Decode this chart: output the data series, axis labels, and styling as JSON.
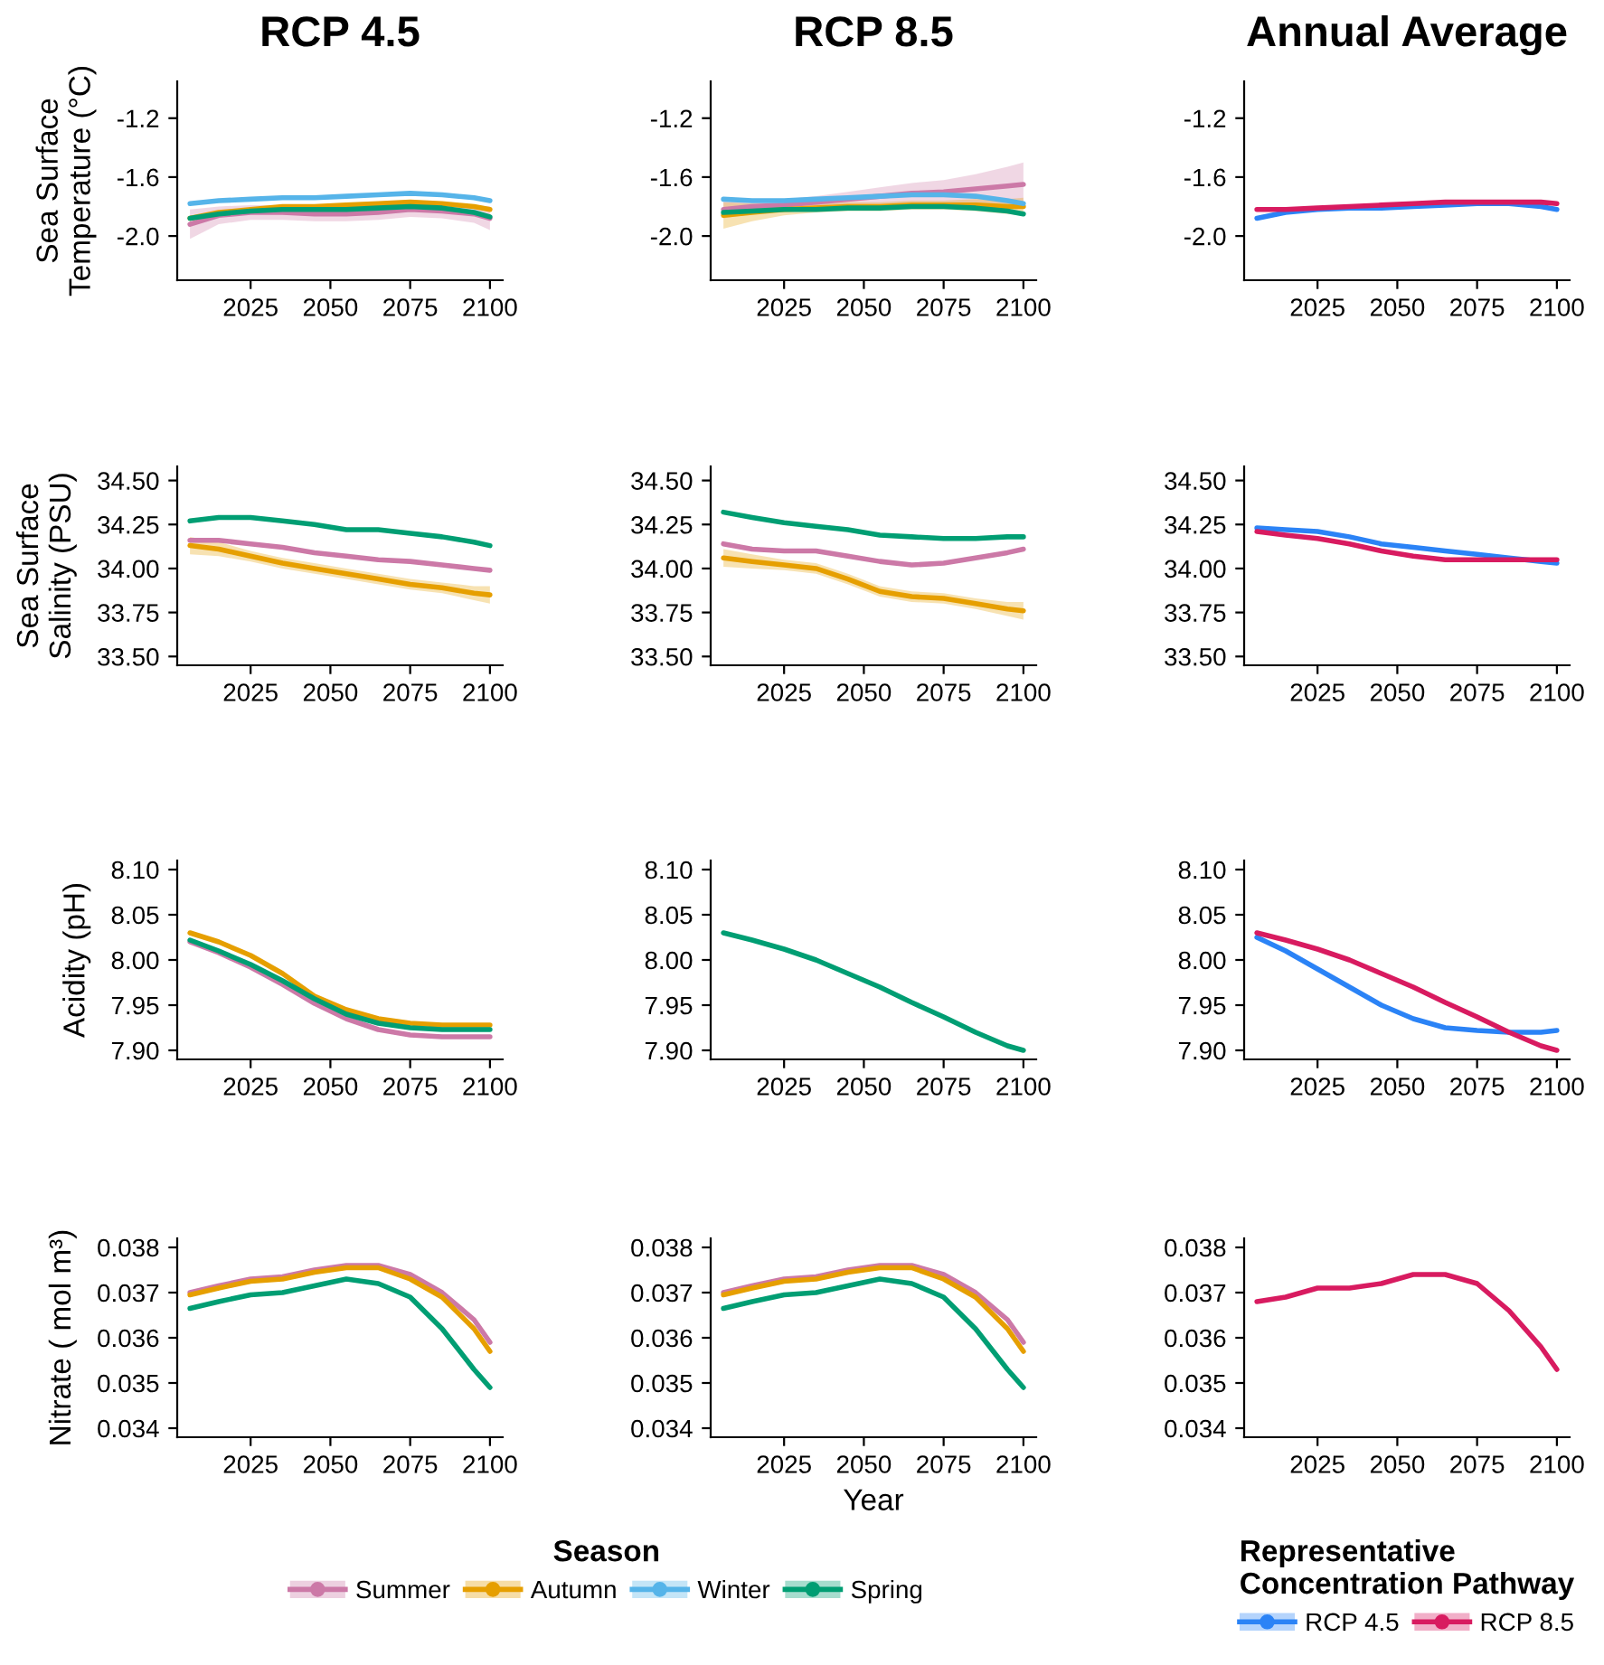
{
  "chart_data": [
    {
      "type": "line",
      "title": "RCP 4.5",
      "ylabel": "Sea Surface\nTemperature (°C)",
      "x": [
        2006,
        2015,
        2025,
        2035,
        2045,
        2055,
        2065,
        2075,
        2085,
        2095,
        2100
      ],
      "xlim": [
        2002,
        2104
      ],
      "xticks": [
        2025,
        2050,
        2075,
        2100
      ],
      "ylim": [
        -2.3,
        -0.95
      ],
      "yticks": [
        {
          "value": -2.0,
          "label": "-2.0"
        },
        -1.6,
        -1.2
      ],
      "series": [
        {
          "color": "#cc79a7",
          "values": [
            -1.92,
            -1.86,
            -1.84,
            -1.84,
            -1.85,
            -1.85,
            -1.84,
            -1.82,
            -1.83,
            -1.85,
            -1.88
          ],
          "lower": [
            -2.02,
            -1.92,
            -1.89,
            -1.89,
            -1.9,
            -1.9,
            -1.89,
            -1.87,
            -1.88,
            -1.91,
            -1.96
          ],
          "upper": [
            -1.82,
            -1.8,
            -1.79,
            -1.79,
            -1.8,
            -1.8,
            -1.79,
            -1.77,
            -1.78,
            -1.79,
            -1.8
          ]
        },
        {
          "color": "#e69f00",
          "values": [
            -1.88,
            -1.84,
            -1.82,
            -1.8,
            -1.8,
            -1.79,
            -1.78,
            -1.77,
            -1.78,
            -1.8,
            -1.82
          ]
        },
        {
          "color": "#56b4e9",
          "values": [
            -1.78,
            -1.76,
            -1.75,
            -1.74,
            -1.74,
            -1.73,
            -1.72,
            -1.71,
            -1.72,
            -1.74,
            -1.76
          ]
        },
        {
          "color": "#009e73",
          "values": [
            -1.88,
            -1.85,
            -1.83,
            -1.82,
            -1.82,
            -1.82,
            -1.81,
            -1.8,
            -1.81,
            -1.84,
            -1.87
          ]
        }
      ]
    },
    {
      "type": "line",
      "title": "RCP 8.5",
      "x": [
        2006,
        2015,
        2025,
        2035,
        2045,
        2055,
        2065,
        2075,
        2085,
        2095,
        2100
      ],
      "xlim": [
        2002,
        2104
      ],
      "xticks": [
        2025,
        2050,
        2075,
        2100
      ],
      "ylim": [
        -2.3,
        -0.95
      ],
      "yticks": [
        {
          "value": -2.0,
          "label": "-2.0"
        },
        -1.6,
        -1.2
      ],
      "series": [
        {
          "color": "#cc79a7",
          "values": [
            -1.82,
            -1.8,
            -1.79,
            -1.77,
            -1.75,
            -1.73,
            -1.71,
            -1.7,
            -1.68,
            -1.66,
            -1.65
          ],
          "lower": [
            -1.88,
            -1.85,
            -1.83,
            -1.81,
            -1.8,
            -1.79,
            -1.78,
            -1.78,
            -1.78,
            -1.79,
            -1.8
          ],
          "upper": [
            -1.76,
            -1.75,
            -1.75,
            -1.73,
            -1.7,
            -1.67,
            -1.64,
            -1.62,
            -1.58,
            -1.53,
            -1.5
          ]
        },
        {
          "color": "#e69f00",
          "values": [
            -1.86,
            -1.84,
            -1.82,
            -1.81,
            -1.8,
            -1.8,
            -1.79,
            -1.79,
            -1.79,
            -1.8,
            -1.8
          ],
          "lower": [
            -1.95,
            -1.9,
            -1.86,
            -1.84,
            -1.83,
            -1.83,
            -1.82,
            -1.82,
            -1.83,
            -1.85,
            -1.86
          ],
          "upper": [
            -1.77,
            -1.78,
            -1.78,
            -1.78,
            -1.77,
            -1.77,
            -1.76,
            -1.76,
            -1.75,
            -1.75,
            -1.74
          ]
        },
        {
          "color": "#56b4e9",
          "values": [
            -1.75,
            -1.76,
            -1.76,
            -1.75,
            -1.74,
            -1.73,
            -1.72,
            -1.72,
            -1.73,
            -1.76,
            -1.78
          ]
        },
        {
          "color": "#009e73",
          "values": [
            -1.84,
            -1.83,
            -1.82,
            -1.82,
            -1.81,
            -1.81,
            -1.8,
            -1.8,
            -1.81,
            -1.83,
            -1.85
          ]
        }
      ]
    },
    {
      "type": "line",
      "title": "Annual Average",
      "x": [
        2006,
        2015,
        2025,
        2035,
        2045,
        2055,
        2065,
        2075,
        2085,
        2095,
        2100
      ],
      "xlim": [
        2002,
        2104
      ],
      "xticks": [
        2025,
        2050,
        2075,
        2100
      ],
      "ylim": [
        -2.3,
        -0.95
      ],
      "yticks": [
        {
          "value": -2.0,
          "label": "-2.0"
        },
        -1.6,
        -1.2
      ],
      "series": [
        {
          "color": "#2b83f6",
          "values": [
            -1.88,
            -1.84,
            -1.82,
            -1.81,
            -1.81,
            -1.8,
            -1.79,
            -1.78,
            -1.78,
            -1.8,
            -1.82
          ]
        },
        {
          "color": "#d81b60",
          "values": [
            -1.82,
            -1.82,
            -1.81,
            -1.8,
            -1.79,
            -1.78,
            -1.77,
            -1.77,
            -1.77,
            -1.77,
            -1.78
          ]
        }
      ]
    },
    {
      "type": "line",
      "ylabel": "Sea Surface\nSalinity (PSU)",
      "x": [
        2006,
        2015,
        2025,
        2035,
        2045,
        2055,
        2065,
        2075,
        2085,
        2095,
        2100
      ],
      "xlim": [
        2002,
        2104
      ],
      "xticks": [
        2025,
        2050,
        2075,
        2100
      ],
      "ylim": [
        33.45,
        34.58
      ],
      "yticks": [
        {
          "value": 33.5,
          "label": "33.50"
        },
        {
          "value": 33.75,
          "label": "33.75"
        },
        {
          "value": 34.0,
          "label": "34.00"
        },
        {
          "value": 34.25,
          "label": "34.25"
        },
        {
          "value": 34.5,
          "label": "34.50"
        }
      ],
      "series": [
        {
          "color": "#cc79a7",
          "values": [
            34.16,
            34.16,
            34.14,
            34.12,
            34.09,
            34.07,
            34.05,
            34.04,
            34.02,
            34.0,
            33.99
          ]
        },
        {
          "color": "#e69f00",
          "values": [
            34.13,
            34.11,
            34.07,
            34.03,
            34.0,
            33.97,
            33.94,
            33.91,
            33.89,
            33.86,
            33.85
          ],
          "lower": [
            34.08,
            34.07,
            34.04,
            34.0,
            33.97,
            33.94,
            33.91,
            33.88,
            33.86,
            33.82,
            33.8
          ],
          "upper": [
            34.18,
            34.15,
            34.1,
            34.06,
            34.03,
            34.0,
            33.97,
            33.94,
            33.92,
            33.9,
            33.9
          ]
        },
        {
          "color": "#009e73",
          "values": [
            34.27,
            34.29,
            34.29,
            34.27,
            34.25,
            34.22,
            34.22,
            34.2,
            34.18,
            34.15,
            34.13
          ]
        }
      ]
    },
    {
      "type": "line",
      "x": [
        2006,
        2015,
        2025,
        2035,
        2045,
        2055,
        2065,
        2075,
        2085,
        2095,
        2100
      ],
      "xlim": [
        2002,
        2104
      ],
      "xticks": [
        2025,
        2050,
        2075,
        2100
      ],
      "ylim": [
        33.45,
        34.58
      ],
      "yticks": [
        {
          "value": 33.5,
          "label": "33.50"
        },
        {
          "value": 33.75,
          "label": "33.75"
        },
        {
          "value": 34.0,
          "label": "34.00"
        },
        {
          "value": 34.25,
          "label": "34.25"
        },
        {
          "value": 34.5,
          "label": "34.50"
        }
      ],
      "series": [
        {
          "color": "#cc79a7",
          "values": [
            34.14,
            34.11,
            34.1,
            34.1,
            34.07,
            34.04,
            34.02,
            34.03,
            34.06,
            34.09,
            34.11
          ]
        },
        {
          "color": "#e69f00",
          "values": [
            34.06,
            34.04,
            34.02,
            34.0,
            33.94,
            33.87,
            33.84,
            33.83,
            33.8,
            33.77,
            33.76
          ],
          "lower": [
            34.01,
            34.0,
            33.99,
            33.97,
            33.91,
            33.84,
            33.81,
            33.8,
            33.77,
            33.73,
            33.71
          ],
          "upper": [
            34.11,
            34.08,
            34.05,
            34.03,
            33.97,
            33.9,
            33.87,
            33.86,
            33.83,
            33.81,
            33.81
          ]
        },
        {
          "color": "#009e73",
          "values": [
            34.32,
            34.29,
            34.26,
            34.24,
            34.22,
            34.19,
            34.18,
            34.17,
            34.17,
            34.18,
            34.18
          ]
        }
      ]
    },
    {
      "type": "line",
      "x": [
        2006,
        2015,
        2025,
        2035,
        2045,
        2055,
        2065,
        2075,
        2085,
        2095,
        2100
      ],
      "xlim": [
        2002,
        2104
      ],
      "xticks": [
        2025,
        2050,
        2075,
        2100
      ],
      "ylim": [
        33.45,
        34.58
      ],
      "yticks": [
        {
          "value": 33.5,
          "label": "33.50"
        },
        {
          "value": 33.75,
          "label": "33.75"
        },
        {
          "value": 34.0,
          "label": "34.00"
        },
        {
          "value": 34.25,
          "label": "34.25"
        },
        {
          "value": 34.5,
          "label": "34.50"
        }
      ],
      "series": [
        {
          "color": "#2b83f6",
          "values": [
            34.23,
            34.22,
            34.21,
            34.18,
            34.14,
            34.12,
            34.1,
            34.08,
            34.06,
            34.04,
            34.03
          ]
        },
        {
          "color": "#d81b60",
          "values": [
            34.21,
            34.19,
            34.17,
            34.14,
            34.1,
            34.07,
            34.05,
            34.05,
            34.05,
            34.05,
            34.05
          ]
        }
      ]
    },
    {
      "type": "line",
      "ylabel": "Acidity (pH)",
      "x": [
        2006,
        2015,
        2025,
        2035,
        2045,
        2055,
        2065,
        2075,
        2085,
        2095,
        2100
      ],
      "xlim": [
        2002,
        2104
      ],
      "xticks": [
        2025,
        2050,
        2075,
        2100
      ],
      "ylim": [
        7.89,
        8.11
      ],
      "yticks": [
        {
          "value": 7.9,
          "label": "7.90"
        },
        {
          "value": 7.95,
          "label": "7.95"
        },
        {
          "value": 8.0,
          "label": "8.00"
        },
        {
          "value": 8.05,
          "label": "8.05"
        },
        {
          "value": 8.1,
          "label": "8.10"
        }
      ],
      "series": [
        {
          "color": "#cc79a7",
          "values": [
            8.02,
            8.008,
            7.992,
            7.973,
            7.952,
            7.935,
            7.923,
            7.917,
            7.915,
            7.915,
            7.915
          ]
        },
        {
          "color": "#e69f00",
          "values": [
            8.03,
            8.02,
            8.005,
            7.985,
            7.96,
            7.945,
            7.935,
            7.93,
            7.928,
            7.928,
            7.928
          ]
        },
        {
          "color": "#009e73",
          "values": [
            8.022,
            8.01,
            7.995,
            7.977,
            7.957,
            7.94,
            7.93,
            7.925,
            7.923,
            7.923,
            7.923
          ]
        }
      ]
    },
    {
      "type": "line",
      "x": [
        2006,
        2015,
        2025,
        2035,
        2045,
        2055,
        2065,
        2075,
        2085,
        2095,
        2100
      ],
      "xlim": [
        2002,
        2104
      ],
      "xticks": [
        2025,
        2050,
        2075,
        2100
      ],
      "ylim": [
        7.89,
        8.11
      ],
      "yticks": [
        {
          "value": 7.9,
          "label": "7.90"
        },
        {
          "value": 7.95,
          "label": "7.95"
        },
        {
          "value": 8.0,
          "label": "8.00"
        },
        {
          "value": 8.05,
          "label": "8.05"
        },
        {
          "value": 8.1,
          "label": "8.10"
        }
      ],
      "series": [
        {
          "color": "#009e73",
          "values": [
            8.03,
            8.022,
            8.012,
            8.0,
            7.985,
            7.97,
            7.953,
            7.937,
            7.92,
            7.905,
            7.9
          ]
        }
      ]
    },
    {
      "type": "line",
      "x": [
        2006,
        2015,
        2025,
        2035,
        2045,
        2055,
        2065,
        2075,
        2085,
        2095,
        2100
      ],
      "xlim": [
        2002,
        2104
      ],
      "xticks": [
        2025,
        2050,
        2075,
        2100
      ],
      "ylim": [
        7.89,
        8.11
      ],
      "yticks": [
        {
          "value": 7.9,
          "label": "7.90"
        },
        {
          "value": 7.95,
          "label": "7.95"
        },
        {
          "value": 8.0,
          "label": "8.00"
        },
        {
          "value": 8.05,
          "label": "8.05"
        },
        {
          "value": 8.1,
          "label": "8.10"
        }
      ],
      "series": [
        {
          "color": "#2b83f6",
          "values": [
            8.025,
            8.01,
            7.99,
            7.97,
            7.95,
            7.935,
            7.925,
            7.922,
            7.92,
            7.92,
            7.922
          ]
        },
        {
          "color": "#d81b60",
          "values": [
            8.03,
            8.022,
            8.012,
            8.0,
            7.985,
            7.97,
            7.953,
            7.937,
            7.92,
            7.905,
            7.9
          ]
        }
      ]
    },
    {
      "type": "line",
      "ylabel": "Nitrate ( mol m³)",
      "x": [
        2006,
        2015,
        2025,
        2035,
        2045,
        2055,
        2065,
        2075,
        2085,
        2095,
        2100
      ],
      "xlim": [
        2002,
        2104
      ],
      "xticks": [
        2025,
        2050,
        2075,
        2100
      ],
      "ylim": [
        0.0338,
        0.0382
      ],
      "yticks": [
        0.034,
        0.035,
        0.036,
        0.037,
        0.038
      ],
      "series": [
        {
          "color": "#cc79a7",
          "values": [
            0.037,
            0.03715,
            0.0373,
            0.03735,
            0.0375,
            0.0376,
            0.0376,
            0.0374,
            0.037,
            0.0364,
            0.0359
          ]
        },
        {
          "color": "#e69f00",
          "values": [
            0.03695,
            0.0371,
            0.03725,
            0.0373,
            0.03745,
            0.03755,
            0.03755,
            0.0373,
            0.0369,
            0.0362,
            0.0357
          ]
        },
        {
          "color": "#009e73",
          "values": [
            0.03665,
            0.0368,
            0.03695,
            0.037,
            0.03715,
            0.0373,
            0.0372,
            0.0369,
            0.0362,
            0.0353,
            0.0349
          ]
        }
      ]
    },
    {
      "type": "line",
      "xlabel": "Year",
      "legend": "bottom",
      "legend_title": "Season",
      "x": [
        2006,
        2015,
        2025,
        2035,
        2045,
        2055,
        2065,
        2075,
        2085,
        2095,
        2100
      ],
      "xlim": [
        2002,
        2104
      ],
      "xticks": [
        2025,
        2050,
        2075,
        2100
      ],
      "ylim": [
        0.0338,
        0.0382
      ],
      "yticks": [
        0.034,
        0.035,
        0.036,
        0.037,
        0.038
      ],
      "series": [
        {
          "name": "Summer",
          "color": "#cc79a7",
          "values": [
            0.037,
            0.03715,
            0.0373,
            0.03735,
            0.0375,
            0.0376,
            0.0376,
            0.0374,
            0.037,
            0.0364,
            0.0359
          ]
        },
        {
          "name": "Autumn",
          "color": "#e69f00",
          "values": [
            0.03695,
            0.0371,
            0.03725,
            0.0373,
            0.03745,
            0.03755,
            0.03755,
            0.0373,
            0.0369,
            0.0362,
            0.0357
          ]
        },
        {
          "name": "Winter",
          "color": "#56b4e9",
          "values": [
            null,
            null,
            null,
            null,
            null,
            null,
            null,
            null,
            null,
            null,
            null
          ]
        },
        {
          "name": "Spring",
          "color": "#009e73",
          "values": [
            0.03665,
            0.0368,
            0.03695,
            0.037,
            0.03715,
            0.0373,
            0.0372,
            0.0369,
            0.0362,
            0.0353,
            0.0349
          ]
        }
      ]
    },
    {
      "type": "line",
      "legend": "bottom",
      "legend_title": "Representative\nConcentration Pathway",
      "x": [
        2006,
        2015,
        2025,
        2035,
        2045,
        2055,
        2065,
        2075,
        2085,
        2095,
        2100
      ],
      "xlim": [
        2002,
        2104
      ],
      "xticks": [
        2025,
        2050,
        2075,
        2100
      ],
      "ylim": [
        0.0338,
        0.0382
      ],
      "yticks": [
        0.034,
        0.035,
        0.036,
        0.037,
        0.038
      ],
      "series": [
        {
          "name": "RCP 4.5",
          "color": "#2b83f6",
          "values": [
            null,
            null,
            null,
            null,
            null,
            null,
            null,
            null,
            null,
            null,
            null
          ]
        },
        {
          "name": "RCP 8.5",
          "color": "#d81b60",
          "values": [
            0.0368,
            0.0369,
            0.0371,
            0.0371,
            0.0372,
            0.0374,
            0.0374,
            0.0372,
            0.0366,
            0.0358,
            0.0353
          ]
        }
      ]
    }
  ]
}
